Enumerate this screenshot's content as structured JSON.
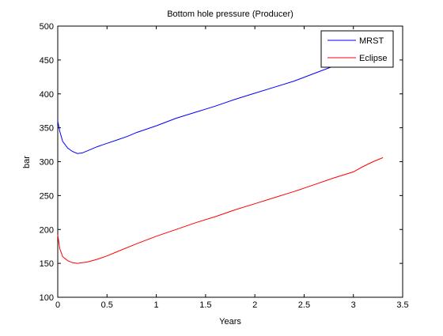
{
  "chart_data": {
    "type": "line",
    "title": "Bottom hole pressure (Producer)",
    "xlabel": "Years",
    "ylabel": "bar",
    "xlim": [
      0,
      3.5
    ],
    "ylim": [
      100,
      500
    ],
    "xticks": [
      "0",
      "0.5",
      "1",
      "1.5",
      "2",
      "2.5",
      "3",
      "3.5"
    ],
    "yticks": [
      "100",
      "150",
      "200",
      "250",
      "300",
      "350",
      "400",
      "450",
      "500"
    ],
    "grid": false,
    "legend_position": "top-right",
    "series": [
      {
        "name": "MRST",
        "color": "#0000ff",
        "x": [
          0,
          0.02,
          0.05,
          0.1,
          0.15,
          0.2,
          0.25,
          0.3,
          0.4,
          0.5,
          0.6,
          0.7,
          0.8,
          1.0,
          1.2,
          1.4,
          1.6,
          1.8,
          2.0,
          2.2,
          2.4,
          2.6,
          2.8,
          3.0,
          3.05
        ],
        "y": [
          360,
          345,
          330,
          320,
          315,
          312,
          313,
          316,
          322,
          327,
          332,
          337,
          343,
          353,
          364,
          373,
          382,
          392,
          401,
          410,
          419,
          430,
          441,
          452,
          455
        ]
      },
      {
        "name": "Eclipse",
        "color": "#ff0000",
        "x": [
          0,
          0.02,
          0.05,
          0.1,
          0.15,
          0.2,
          0.25,
          0.3,
          0.4,
          0.5,
          0.6,
          0.8,
          1.0,
          1.2,
          1.4,
          1.6,
          1.8,
          2.0,
          2.2,
          2.4,
          2.6,
          2.8,
          3.0,
          3.1,
          3.2,
          3.3
        ],
        "y": [
          192,
          172,
          160,
          154,
          151,
          150,
          151,
          152,
          156,
          161,
          167,
          179,
          190,
          200,
          210,
          219,
          229,
          238,
          247,
          256,
          266,
          276,
          285,
          293,
          300,
          306
        ]
      }
    ]
  }
}
